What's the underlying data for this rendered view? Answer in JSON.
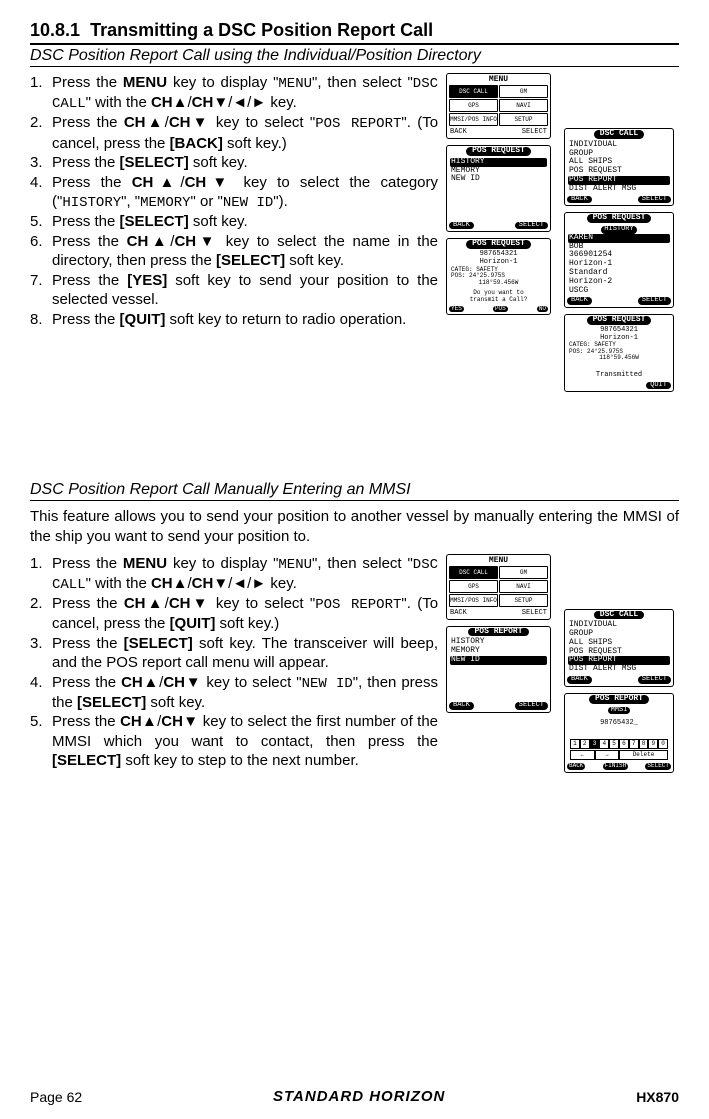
{
  "section": {
    "number": "10.8.1",
    "title": "Transmitting a DSC Position Report Call",
    "sub1": "DSC Position Report Call using the Individual/Position Directory",
    "sub2": "DSC Position Report Call Manually Entering an MMSI",
    "intro2": "This feature allows you to send your position to another vessel by manually entering the MMSI of the ship you want to send your position to."
  },
  "steps1": [
    {
      "n": "1.",
      "t": "Press the <b>MENU</b> key to display \"<span class='mono'>MENU</span>\", then select \"<span class='mono'>DSC CALL</span>\" with the <b>CH▲</b>/<b>CH▼</b>/◄/► key."
    },
    {
      "n": "2.",
      "t": "Press the <b>CH▲</b>/<b>CH▼</b> key to select \"<span class='mono'>POS REPORT</span>\". (To cancel, press the <b>[BACK]</b> soft key.)"
    },
    {
      "n": "3.",
      "t": "Press the <b>[SELECT]</b> soft key."
    },
    {
      "n": "4.",
      "t": "Press the <b>CH▲</b>/<b>CH▼</b> key to select the category (\"<span class='mono'>HISTORY</span>\", \"<span class='mono'>MEMORY</span>\" or \"<span class='mono'>NEW ID</span>\")."
    },
    {
      "n": "5.",
      "t": "Press the <b>[SELECT]</b> soft key."
    },
    {
      "n": "6.",
      "t": "Press the <b>CH▲</b>/<b>CH▼</b> key to select the name in the directory, then press the <b>[SELECT]</b> soft key."
    },
    {
      "n": "7.",
      "t": "Press the <b>[YES]</b> soft key to send your position to the selected vessel."
    },
    {
      "n": "8.",
      "t": "Press the <b>[QUIT]</b> soft key to return to radio operation."
    }
  ],
  "steps2": [
    {
      "n": "1.",
      "t": "Press the <b>MENU</b> key to display \"<span class='mono'>MENU</span>\", then select \"<span class='mono'>DSC CALL</span>\" with the <b>CH▲</b>/<b>CH▼</b>/◄/► key."
    },
    {
      "n": "2.",
      "t": "Press the <b>CH▲</b>/<b>CH▼</b> key to select \"<span class='mono'>POS REPORT</span>\". (To cancel, press the <b>[QUIT]</b> soft key.)"
    },
    {
      "n": "3.",
      "t": "Press the <b>[SELECT]</b> soft key. The transceiver will beep, and the POS report call menu will appear."
    },
    {
      "n": "4.",
      "t": "Press the <b>CH▲</b>/<b>CH▼</b> key to select \"<span class='mono'>NEW ID</span>\", then press the <b>[SELECT]</b> soft key."
    },
    {
      "n": "5.",
      "t": "Press the <b>CH▲</b>/<b>CH▼</b> key to select the first number of the MMSI which you want to contact, then press the <b>[SELECT]</b> soft key to step to the next number."
    }
  ],
  "lcd": {
    "menu": {
      "title": "MENU",
      "cells": [
        "DSC CALL",
        "GM",
        "GPS",
        "NAVI",
        "MMSI/POS INFO",
        "SETUP"
      ],
      "back": "BACK",
      "select": "SELECT"
    },
    "posreq1": {
      "title": "POS REQUEST",
      "rows": [
        "HISTORY",
        "MEMORY",
        "NEW ID"
      ],
      "sel": 0,
      "back": "BACK",
      "select": "SELECT"
    },
    "posreq2": {
      "title": "POS REQUEST",
      "id": "987654321",
      "name": "Horizon-1",
      "categ": "CATEG: SAFETY",
      "pos1": "POS: 24°25.975S",
      "pos2": "118°59.456W",
      "q": "Do you want to",
      "q2": "transmit a Call?",
      "yes": "YES",
      "poskey": "POS",
      "no": "NO"
    },
    "dsccall": {
      "title": "DSC CALL",
      "rows": [
        "INDIVIDUAL",
        "GROUP",
        "ALL SHIPS",
        "POS REQUEST",
        "POS REPORT",
        "DIST ALERT MSG"
      ],
      "sel": 4,
      "back": "BACK",
      "select": "SELECT"
    },
    "history": {
      "title": "POS REQUEST",
      "sub": "HISTORY",
      "rows": [
        "KAREN",
        "BOB",
        "366901254",
        "Horizon-1",
        "Standard",
        "Horizon-2",
        "USCG"
      ],
      "sel": 0,
      "back": "BACK",
      "select": "SELECT"
    },
    "transmitted": {
      "title": "POS REQUEST",
      "id": "987654321",
      "name": "Horizon-1",
      "categ": "CATEG: SAFETY",
      "pos1": "POS: 24°25.975S",
      "pos2": "118°59.456W",
      "status": "Transmitted",
      "quit": "QUIT"
    },
    "posrep1": {
      "title": "POS REPORT",
      "rows": [
        "HISTORY",
        "MEMORY",
        "NEW ID"
      ],
      "sel": 2,
      "back": "BACK",
      "select": "SELECT"
    },
    "dsccall2": {
      "title": "DSC CALL",
      "rows": [
        "INDIVIDUAL",
        "GROUP",
        "ALL SHIPS",
        "POS REQUEST",
        "POS REPORT",
        "DIST ALERT MSG"
      ],
      "sel": 4,
      "back": "BACK",
      "select": "SELECT"
    },
    "mmsi": {
      "title": "POS REPORT",
      "sub": "MMSI",
      "value": "98765432_",
      "digits": [
        "1",
        "2",
        "3",
        "4",
        "5",
        "6",
        "7",
        "8",
        "9",
        "0"
      ],
      "arrows": [
        "←",
        "→",
        "Delete"
      ],
      "back": "BACK",
      "finish": "FINISH",
      "select": "SELECT"
    }
  },
  "footer": {
    "page": "Page 62",
    "brand": "STANDARD HORIZON",
    "model": "HX870"
  }
}
